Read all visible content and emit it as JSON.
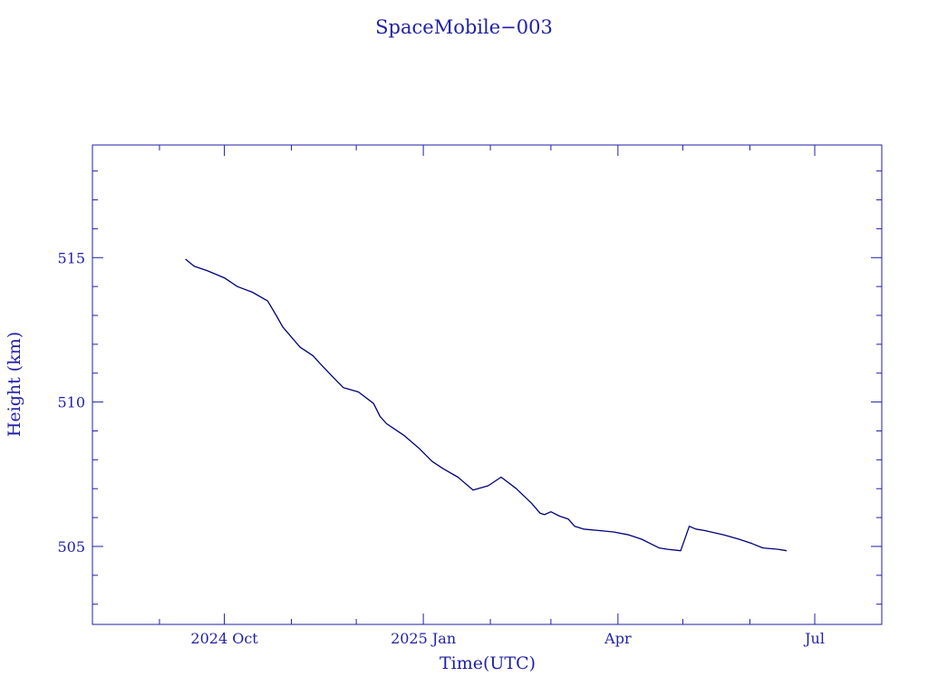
{
  "chart_data": {
    "type": "line",
    "title": "SpaceMobile−003",
    "xlabel": "Time(UTC)",
    "ylabel": "Height (km)",
    "xlim": [
      "2024-08-01",
      "2025-08-01"
    ],
    "ylim": [
      502.3,
      518.9
    ],
    "x_ticks": [
      {
        "date": "2024-10-01",
        "label": "2024 Oct"
      },
      {
        "date": "2025-01-01",
        "label": "2025 Jan"
      },
      {
        "date": "2025-04-01",
        "label": "Apr"
      },
      {
        "date": "2025-07-01",
        "label": "Jul"
      }
    ],
    "y_ticks": [
      505,
      510,
      515
    ],
    "grid": false,
    "line_color": "#00007a",
    "axis_color": "#1f1fa8",
    "series": [
      {
        "name": "",
        "x": [
          "2024-09-13",
          "2024-09-17",
          "2024-09-23",
          "2024-10-01",
          "2024-10-07",
          "2024-10-14",
          "2024-10-21",
          "2024-10-25",
          "2024-10-28",
          "2024-11-05",
          "2024-11-11",
          "2024-11-14",
          "2024-11-21",
          "2024-11-25",
          "2024-12-02",
          "2024-12-09",
          "2024-12-12",
          "2024-12-15",
          "2024-12-18",
          "2024-12-23",
          "2024-12-30",
          "2025-01-05",
          "2025-01-10",
          "2025-01-17",
          "2025-01-24",
          "2025-01-31",
          "2025-02-06",
          "2025-02-13",
          "2025-02-20",
          "2025-02-24",
          "2025-02-26",
          "2025-03-01",
          "2025-03-05",
          "2025-03-09",
          "2025-03-12",
          "2025-03-16",
          "2025-03-23",
          "2025-03-30",
          "2025-04-06",
          "2025-04-12",
          "2025-04-16",
          "2025-04-20",
          "2025-04-24",
          "2025-04-30",
          "2025-05-04",
          "2025-05-07",
          "2025-05-11",
          "2025-05-14",
          "2025-05-20",
          "2025-05-27",
          "2025-06-02",
          "2025-06-07",
          "2025-06-14",
          "2025-06-18"
        ],
        "y": [
          514.95,
          514.7,
          514.55,
          514.3,
          514.0,
          513.8,
          513.5,
          513.0,
          512.6,
          511.9,
          511.6,
          511.35,
          510.8,
          510.5,
          510.35,
          509.95,
          509.5,
          509.25,
          509.1,
          508.85,
          508.4,
          507.95,
          507.7,
          507.4,
          506.95,
          507.1,
          507.4,
          507.0,
          506.5,
          506.15,
          506.1,
          506.2,
          506.05,
          505.95,
          505.7,
          505.6,
          505.55,
          505.5,
          505.4,
          505.25,
          505.1,
          504.95,
          504.9,
          504.85,
          505.7,
          505.6,
          505.55,
          505.5,
          505.4,
          505.25,
          505.1,
          504.95,
          504.9,
          504.85
        ]
      }
    ]
  }
}
